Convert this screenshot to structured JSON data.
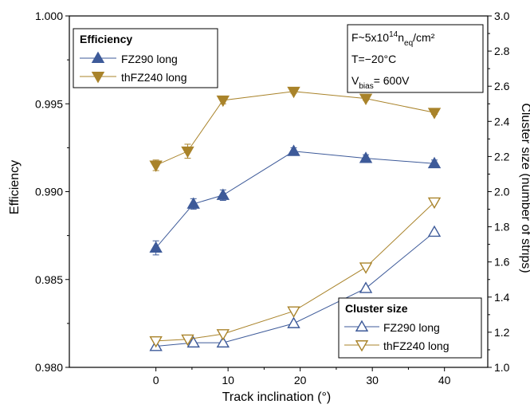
{
  "chart_data": {
    "type": "line",
    "xlabel": "Track inclination (°)",
    "ylabel_left": "Efficiency",
    "ylabel_right": "Cluster size (number of strips)",
    "xlim": [
      -12,
      46
    ],
    "ylim_left": [
      0.98,
      1.0
    ],
    "ylim_right": [
      1.0,
      3.0
    ],
    "x_ticks": [
      0,
      10,
      20,
      30,
      40
    ],
    "y_left_ticks": [
      "0.980",
      "0.985",
      "0.990",
      "0.995",
      "1.000"
    ],
    "y_right_ticks": [
      "1.0",
      "1.2",
      "1.4",
      "1.6",
      "1.8",
      "2.0",
      "2.2",
      "2.4",
      "2.6",
      "2.8",
      "3.0"
    ],
    "colors": {
      "fz290": "#3d5a99",
      "thfz240": "#a9832a"
    },
    "efficiency": {
      "legend_title": "Efficiency",
      "series": [
        {
          "name": "FZ290 long",
          "color": "#3d5a99",
          "x": [
            0,
            5.2,
            9.3,
            19.1,
            29.1,
            38.6
          ],
          "values": [
            0.9868,
            0.9893,
            0.9898,
            0.9923,
            0.9919,
            0.9916
          ],
          "err": [
            0.0004,
            0.0003,
            0.0003,
            0.0002,
            0.0002,
            0.0002
          ]
        },
        {
          "name": "thFZ240 long",
          "color": "#a9832a",
          "x": [
            0,
            4.4,
            9.3,
            19.1,
            29.1,
            38.6
          ],
          "values": [
            0.9915,
            0.9923,
            0.9952,
            0.9957,
            0.9953,
            0.9945
          ],
          "err": [
            0.0003,
            0.0004,
            0.0002,
            0.0001,
            0.0001,
            0.0001
          ]
        }
      ]
    },
    "cluster_size": {
      "legend_title": "Cluster size",
      "series": [
        {
          "name": "FZ290 long",
          "color": "#3d5a99",
          "x": [
            0,
            5.2,
            9.3,
            19.1,
            29.1,
            38.6
          ],
          "values": [
            1.12,
            1.14,
            1.14,
            1.25,
            1.45,
            1.77
          ]
        },
        {
          "name": "thFZ240 long",
          "color": "#a9832a",
          "x": [
            0,
            4.4,
            9.3,
            19.1,
            29.1,
            38.6
          ],
          "values": [
            1.15,
            1.16,
            1.19,
            1.32,
            1.57,
            1.94
          ]
        }
      ]
    },
    "annotation": {
      "fluence_prefix": "F~5x10",
      "fluence_exp": "14",
      "fluence_n": "n",
      "fluence_sub": "eq",
      "fluence_unit": "/cm²",
      "temperature": "T=−20°C",
      "vbias_prefix": "V",
      "vbias_sub": "bias",
      "vbias_value": "= 600V"
    }
  }
}
